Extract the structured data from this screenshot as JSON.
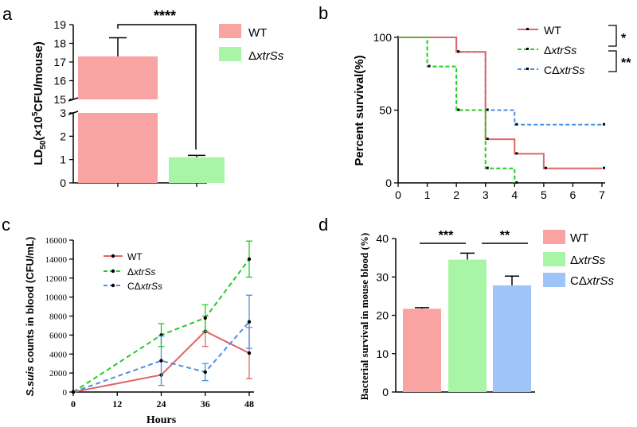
{
  "chart_data": [
    {
      "panel": "a",
      "type": "bar",
      "ylabel_parts": [
        "LD",
        "50",
        "(×10",
        "5",
        "CFU/mouse)"
      ],
      "categories": [
        "WT",
        "ΔxtrSs"
      ],
      "values": [
        17.3,
        1.1
      ],
      "errors": [
        1.0,
        0.08
      ],
      "colors": [
        "#F9A3A3",
        "#A8F5A8"
      ],
      "y_ticks_lower": [
        0,
        1,
        2,
        3
      ],
      "y_ticks_upper": [
        15,
        16,
        17,
        18,
        19
      ],
      "significance": "****",
      "legend": [
        "WT",
        "ΔxtrSs"
      ]
    },
    {
      "panel": "b",
      "type": "line",
      "subtype": "survival",
      "ylabel": "Percent survival(%)",
      "x_ticks": [
        0,
        1,
        2,
        3,
        4,
        5,
        6,
        7
      ],
      "y_ticks": [
        0,
        50,
        100
      ],
      "xlim": [
        0,
        7
      ],
      "ylim": [
        0,
        100
      ],
      "series": [
        {
          "name": "WT",
          "color": "#E06666",
          "style": "solid",
          "x": [
            0,
            2,
            3,
            4,
            5,
            7
          ],
          "y": [
            100,
            90,
            30,
            20,
            10,
            10
          ]
        },
        {
          "name": "ΔxtrSs",
          "color": "#22CC22",
          "style": "dashed",
          "x": [
            0,
            1,
            2,
            3,
            4
          ],
          "y": [
            100,
            80,
            50,
            10,
            0
          ]
        },
        {
          "name": "CΔxtrSs",
          "color": "#4A90E2",
          "style": "dashed",
          "x": [
            0,
            2,
            3,
            4,
            7
          ],
          "y": [
            100,
            90,
            50,
            40,
            40
          ]
        }
      ],
      "significance": [
        "*",
        "**"
      ]
    },
    {
      "panel": "c",
      "type": "line",
      "xlabel": "Hours",
      "ylabel_italic": "S.suis",
      "ylabel_rest": " counts in blood (CFU/mL)",
      "x_ticks": [
        0,
        12,
        24,
        36,
        48
      ],
      "y_ticks": [
        0,
        2000,
        4000,
        6000,
        8000,
        10000,
        12000,
        14000,
        16000
      ],
      "xlim": [
        0,
        48
      ],
      "ylim": [
        0,
        16000
      ],
      "series": [
        {
          "name": "WT",
          "color": "#E06666",
          "style": "solid",
          "x": [
            0,
            24,
            36,
            48
          ],
          "y": [
            0,
            1800,
            6400,
            4100
          ],
          "err": [
            0,
            0,
            1600,
            2700
          ]
        },
        {
          "name": "ΔxtrSs",
          "color": "#22CC22",
          "style": "dashed",
          "x": [
            0,
            24,
            36,
            48
          ],
          "y": [
            0,
            6000,
            7800,
            14000
          ],
          "err": [
            0,
            1200,
            1400,
            1900
          ]
        },
        {
          "name": "CΔxtrSs",
          "color": "#4A90E2",
          "style": "dashed",
          "x": [
            0,
            24,
            36,
            48
          ],
          "y": [
            0,
            3300,
            2100,
            7400
          ],
          "err": [
            0,
            2600,
            900,
            2800
          ]
        }
      ]
    },
    {
      "panel": "d",
      "type": "bar",
      "ylabel": "Bacterial survival in mouse blood (%)",
      "categories": [
        "WT",
        "ΔxtrSs",
        "CΔxtrSs"
      ],
      "values": [
        21.7,
        34.5,
        27.8
      ],
      "errors": [
        0.3,
        1.7,
        2.4
      ],
      "colors": [
        "#F9A3A3",
        "#A8F5A8",
        "#9FC5F8"
      ],
      "y_ticks": [
        0,
        10,
        20,
        30,
        40
      ],
      "ylim": [
        0,
        40
      ],
      "significance": [
        "***",
        "**"
      ],
      "legend": [
        "WT",
        "ΔxtrSs",
        "CΔxtrSs"
      ]
    }
  ],
  "labels": {
    "a": "a",
    "b": "b",
    "c": "c",
    "d": "d",
    "hours": "Hours",
    "delta": "Δ",
    "c_prefix": "C",
    "xtrss": "xtrSs"
  }
}
